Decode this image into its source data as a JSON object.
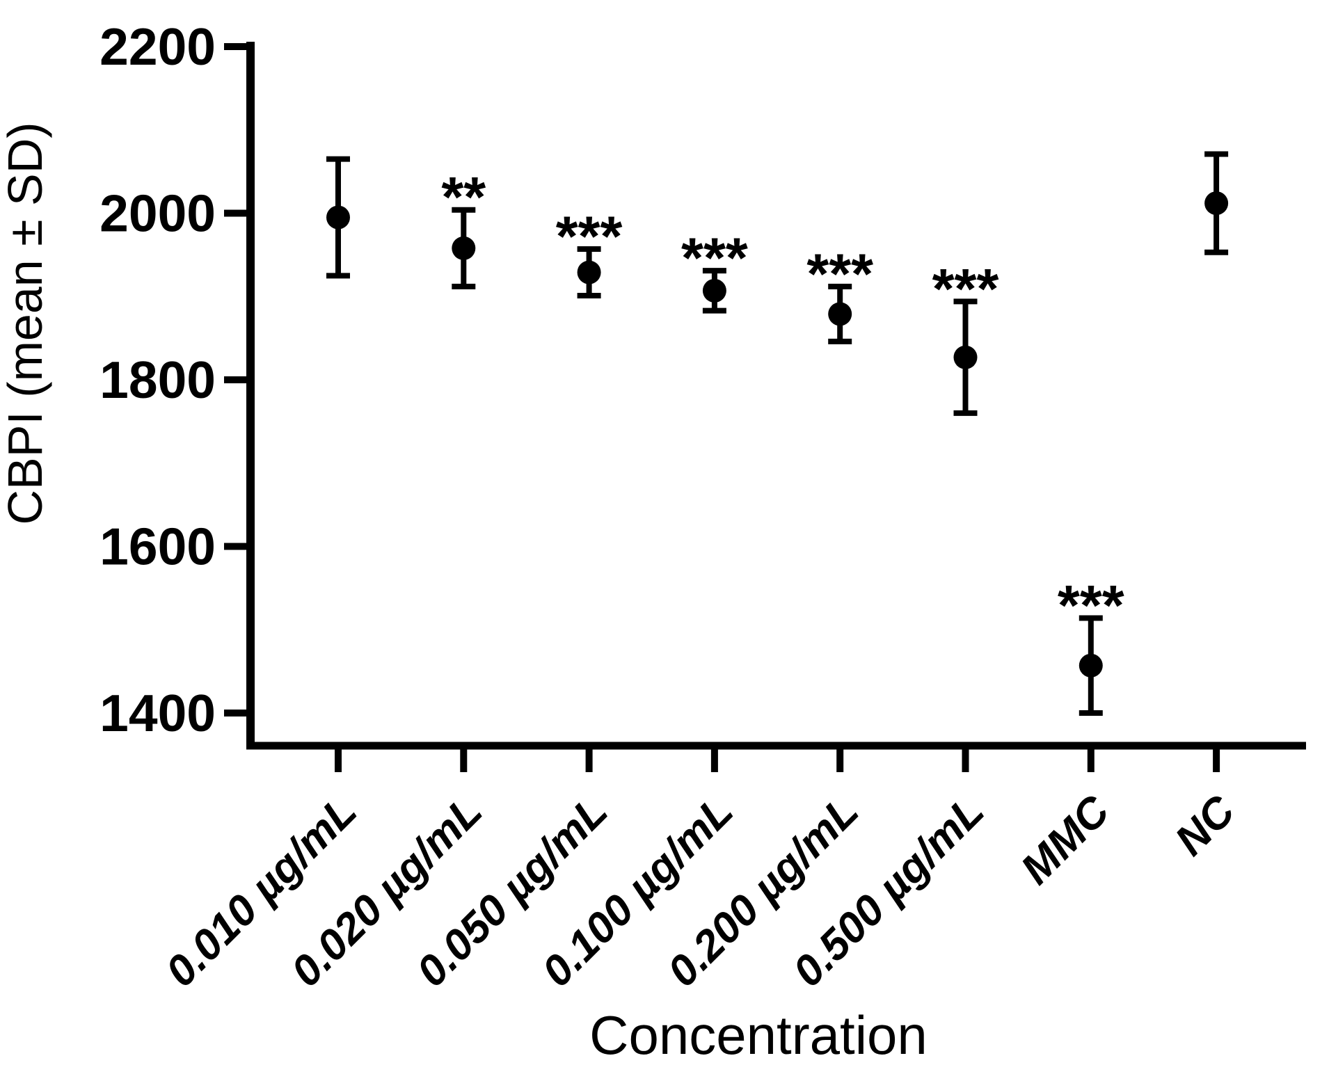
{
  "chart_data": {
    "type": "scatter",
    "subtype": "point-errorbar",
    "title": "",
    "xlabel": "Concentration",
    "ylabel": "CBPI (mean ± SD)",
    "categories": [
      "0.010 µg/mL",
      "0.020 µg/mL",
      "0.050 µg/mL",
      "0.100 µg/mL",
      "0.200 µg/mL",
      "0.500 µg/mL",
      "MMC",
      "NC"
    ],
    "series": [
      {
        "name": "CBPI",
        "means": [
          1995,
          1958,
          1929,
          1907,
          1879,
          1827,
          1457,
          2012
        ],
        "sd": [
          70,
          46,
          28,
          24,
          33,
          67,
          57,
          59
        ]
      }
    ],
    "significance_annotations": [
      "",
      "**",
      "***",
      "***",
      "***",
      "***",
      "***",
      ""
    ],
    "yticks": [
      1400,
      1600,
      1800,
      2000,
      2200
    ],
    "ylim": [
      1363,
      2200
    ],
    "grid": false,
    "legend": "none",
    "marker": "filled-circle",
    "colors": {
      "foreground": "#000000",
      "background": "#ffffff"
    }
  }
}
